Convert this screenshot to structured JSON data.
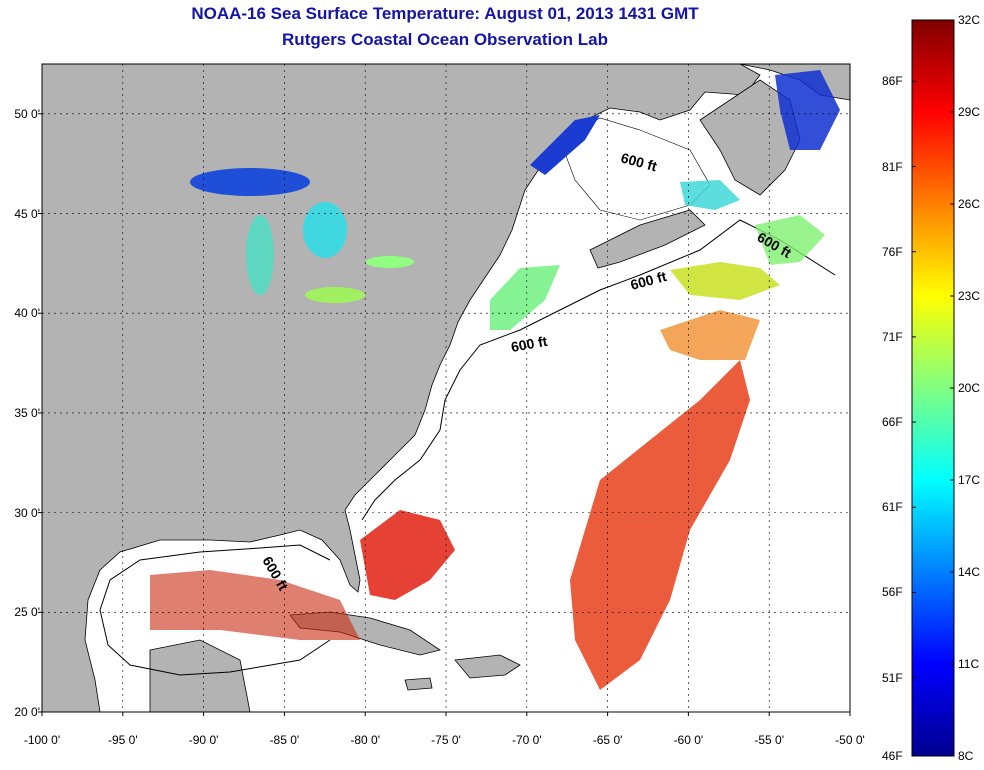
{
  "title": "NOAA-16 Sea Surface Temperature:  August 01, 2013 1431 GMT",
  "subtitle": "Rutgers Coastal Ocean Observation Lab",
  "map": {
    "lon_range": [
      -100,
      -50
    ],
    "lat_range": [
      20,
      52.5
    ],
    "lat_ticks": [
      {
        "value": 50,
        "label": "50 0'"
      },
      {
        "value": 45,
        "label": "45 0'"
      },
      {
        "value": 40,
        "label": "40 0'"
      },
      {
        "value": 35,
        "label": "35 0'"
      },
      {
        "value": 30,
        "label": "30 0'"
      },
      {
        "value": 25,
        "label": "25 0'"
      },
      {
        "value": 20,
        "label": "20 0'"
      }
    ],
    "lon_ticks": [
      {
        "value": -100,
        "label": "-100 0'"
      },
      {
        "value": -95,
        "label": "-95 0'"
      },
      {
        "value": -90,
        "label": "-90 0'"
      },
      {
        "value": -85,
        "label": "-85 0'"
      },
      {
        "value": -80,
        "label": "-80 0'"
      },
      {
        "value": -75,
        "label": "-75 0'"
      },
      {
        "value": -70,
        "label": "-70 0'"
      },
      {
        "value": -65,
        "label": "-65 0'"
      },
      {
        "value": -60,
        "label": "-60 0'"
      },
      {
        "value": -55,
        "label": "-55 0'"
      },
      {
        "value": -50,
        "label": "-50 0'"
      }
    ],
    "contour_label": "600 ft",
    "land_color": "#b3b3b3",
    "ocean_color": "#ffffff"
  },
  "colorbar": {
    "celsius_range": [
      8,
      32
    ],
    "celsius_labels": [
      "32C",
      "29C",
      "26C",
      "23C",
      "20C",
      "17C",
      "14C",
      "11C",
      "8C"
    ],
    "fahrenheit_labels": [
      "86F",
      "81F",
      "76F",
      "71F",
      "66F",
      "61F",
      "56F",
      "51F",
      "46F"
    ]
  }
}
